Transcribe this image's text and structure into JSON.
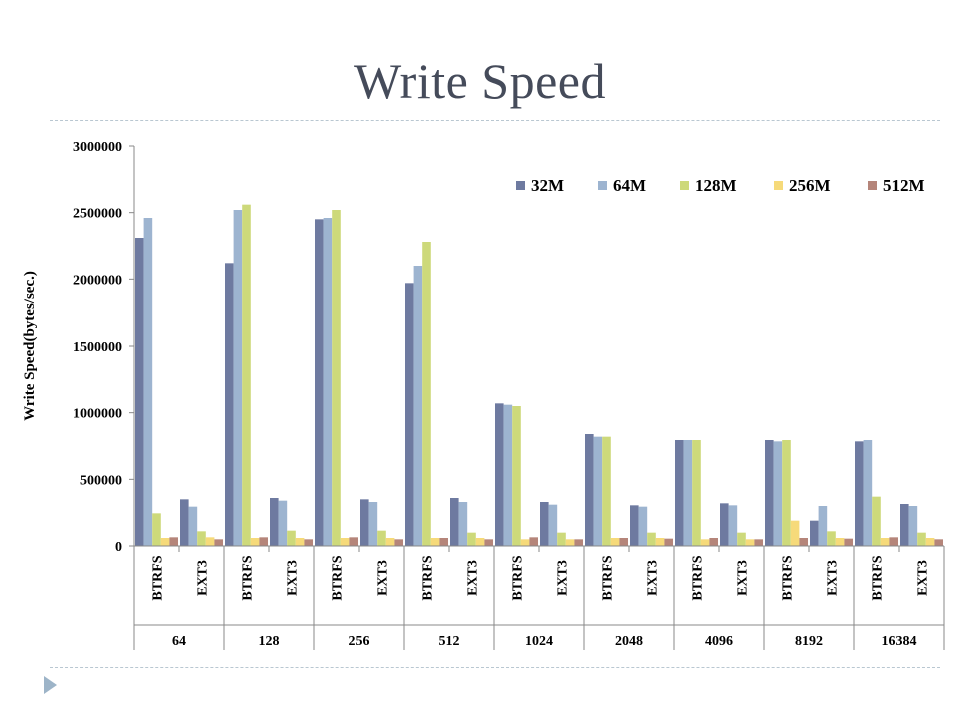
{
  "slide": {
    "title": "Write Speed"
  },
  "colors": {
    "title": "#454b5a",
    "divider": "#b9c7d1",
    "bullet": "#9db4c8",
    "series": [
      "#6e7aa0",
      "#9db4d0",
      "#cdd97a",
      "#f6da7a",
      "#b5857a"
    ]
  },
  "icons": {
    "bullet": "triangle-bullet-icon"
  },
  "chart_data": {
    "type": "bar",
    "title": "",
    "xlabel": "",
    "ylabel": "Write Speed(bytes/sec.)",
    "ylim": [
      0,
      3000000
    ],
    "yticks": [
      "0",
      "500000",
      "1000000",
      "1500000",
      "2000000",
      "2500000",
      "3000000"
    ],
    "grid": false,
    "legend_position": "top-right",
    "groups": [
      "64",
      "128",
      "256",
      "512",
      "1024",
      "2048",
      "4096",
      "8192",
      "16384"
    ],
    "categories": [
      "BTRFS",
      "EXT3",
      "BTRFS",
      "EXT3",
      "BTRFS",
      "EXT3",
      "BTRFS",
      "EXT3",
      "BTRFS",
      "EXT3",
      "BTRFS",
      "EXT3",
      "BTRFS",
      "EXT3",
      "BTRFS",
      "EXT3",
      "BTRFS",
      "EXT3"
    ],
    "series": [
      {
        "name": "32M",
        "values": [
          2310000,
          350000,
          2120000,
          360000,
          2450000,
          350000,
          1970000,
          360000,
          1070000,
          330000,
          840000,
          305000,
          795000,
          320000,
          795000,
          190000,
          785000,
          315000
        ]
      },
      {
        "name": "64M",
        "values": [
          2460000,
          295000,
          2520000,
          340000,
          2460000,
          330000,
          2100000,
          330000,
          1060000,
          310000,
          820000,
          295000,
          795000,
          305000,
          785000,
          300000,
          795000,
          300000
        ]
      },
      {
        "name": "128M",
        "values": [
          245000,
          110000,
          2560000,
          115000,
          2520000,
          115000,
          2280000,
          100000,
          1050000,
          100000,
          820000,
          100000,
          795000,
          100000,
          795000,
          110000,
          370000,
          100000
        ]
      },
      {
        "name": "256M",
        "values": [
          60000,
          65000,
          60000,
          60000,
          60000,
          60000,
          60000,
          60000,
          50000,
          50000,
          60000,
          60000,
          50000,
          50000,
          190000,
          60000,
          60000,
          60000
        ]
      },
      {
        "name": "512M",
        "values": [
          65000,
          50000,
          65000,
          50000,
          65000,
          50000,
          60000,
          50000,
          65000,
          50000,
          60000,
          55000,
          60000,
          50000,
          60000,
          55000,
          65000,
          50000
        ]
      }
    ]
  }
}
